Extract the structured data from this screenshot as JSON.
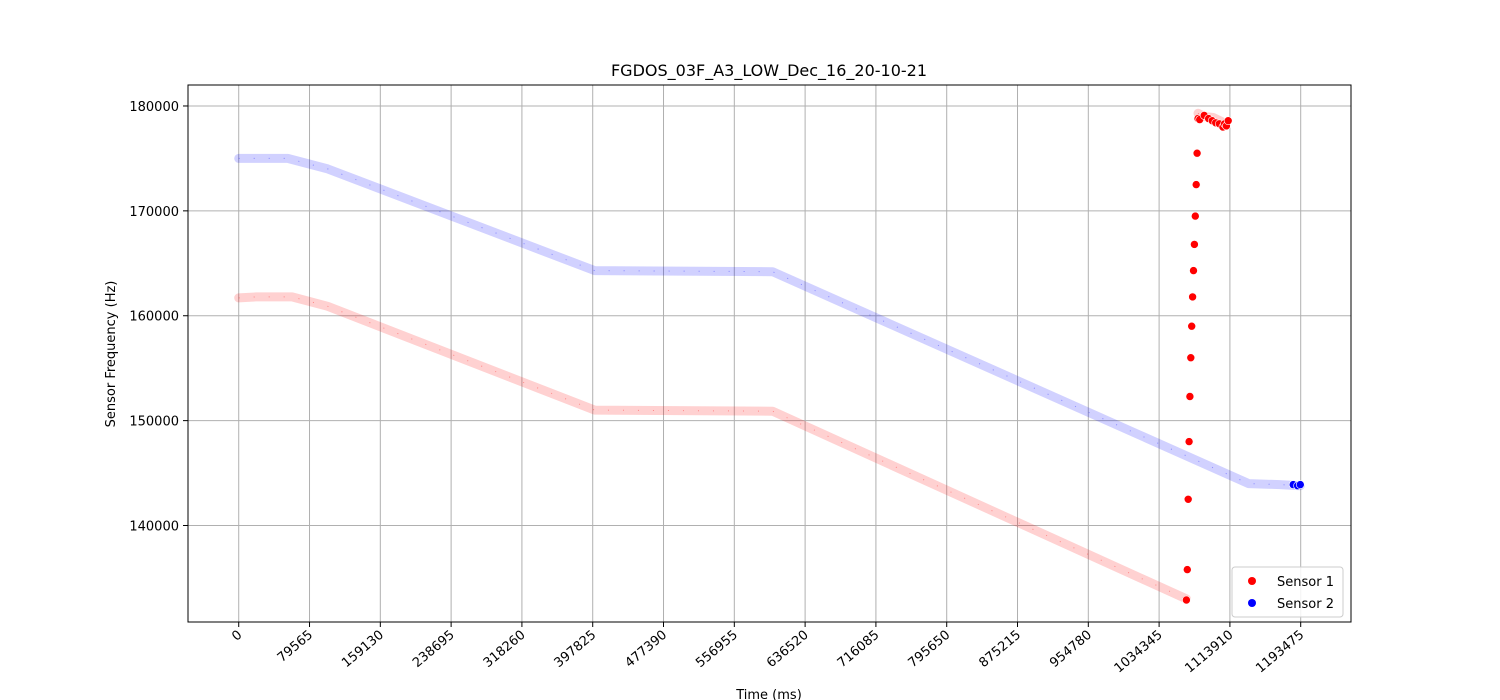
{
  "chart_data": {
    "type": "scatter",
    "title": "FGDOS_03F_A3_LOW_Dec_16_20-10-21",
    "xlabel": "Time (ms)",
    "ylabel": "Sensor Frequency (Hz)",
    "xlim": [
      -57000,
      1250000
    ],
    "ylim": [
      130800,
      182000
    ],
    "x_ticks": [
      0,
      79565,
      159130,
      238695,
      318260,
      397825,
      477390,
      556955,
      636520,
      716085,
      795650,
      875215,
      954780,
      1034345,
      1113910,
      1193475
    ],
    "y_ticks": [
      140000,
      150000,
      160000,
      170000,
      180000
    ],
    "grid": true,
    "legend_position": "bottom-right",
    "series": [
      {
        "name": "Sensor 1",
        "color": "#ff0000",
        "segments": [
          {
            "style": "band",
            "x": [
              0,
              20000,
              60000,
              100000,
              400000,
              600000,
              1065000
            ],
            "y": [
              161700,
              161800,
              161800,
              160900,
              151000,
              150900,
              133000
            ]
          },
          {
            "style": "dots",
            "x": [
              1065000,
              1066000,
              1067000,
              1068000,
              1069000,
              1070000,
              1071000,
              1072000,
              1073000,
              1074000,
              1075000,
              1076000,
              1077000,
              1078000
            ],
            "y": [
              132900,
              135800,
              142500,
              148000,
              152300,
              156000,
              159000,
              161800,
              164300,
              166800,
              169500,
              172500,
              175500,
              178800
            ]
          },
          {
            "style": "band",
            "x": [
              1078000,
              1085000,
              1095000,
              1105000
            ],
            "y": [
              179300,
              179000,
              178900,
              178500
            ]
          },
          {
            "style": "dots",
            "x": [
              1080000,
              1085000,
              1090000,
              1094000,
              1098000,
              1102000,
              1106000,
              1108000,
              1110000,
              1112000
            ],
            "y": [
              178700,
              179100,
              178800,
              178600,
              178400,
              178300,
              178000,
              178300,
              178100,
              178600
            ]
          }
        ]
      },
      {
        "name": "Sensor 2",
        "color": "#0000ff",
        "segments": [
          {
            "style": "band",
            "x": [
              0,
              20000,
              55000,
              100000,
              400000,
              600000,
              1135000,
              1170000,
              1193000
            ],
            "y": [
              175000,
              175000,
              175000,
              174000,
              164300,
              164200,
              144000,
              143900,
              143800
            ]
          },
          {
            "style": "dots",
            "x": [
              1185000,
              1190000,
              1193000
            ],
            "y": [
              143900,
              143800,
              143900
            ]
          }
        ]
      }
    ]
  }
}
